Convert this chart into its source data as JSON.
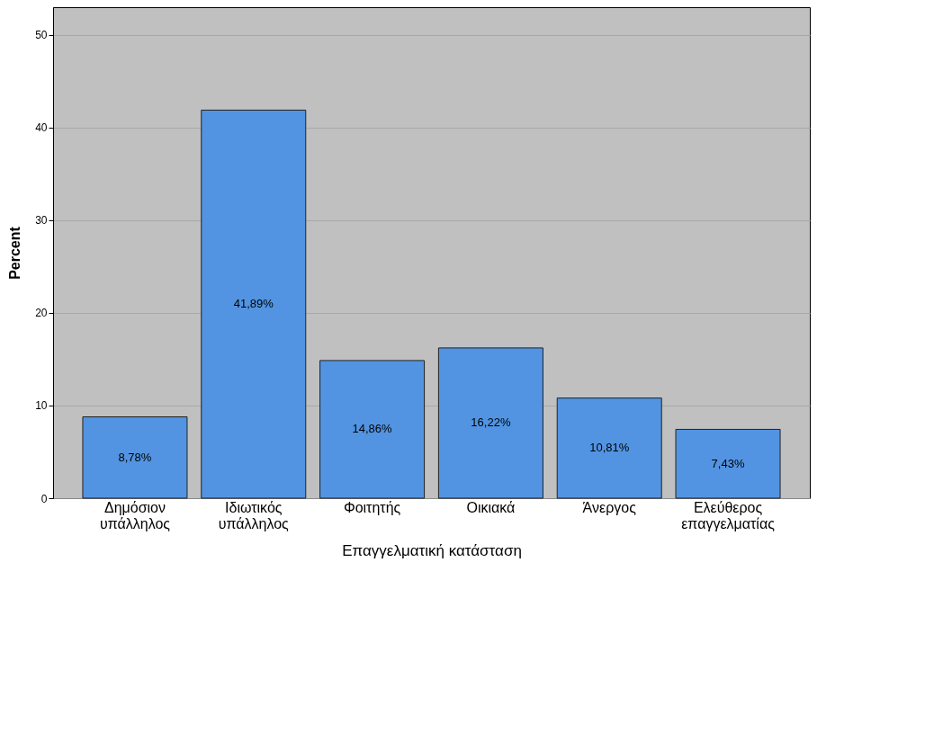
{
  "chart_data": {
    "type": "bar",
    "xlabel": "Επαγγελματική κατάσταση",
    "ylabel": "Percent",
    "categories": [
      "Δημόσιον υπάλληλος",
      "Ιδιωτικός υπάλληλος",
      "Φοιτητής",
      "Οικιακά",
      "Άνεργος",
      "Ελεύθερος επαγγελματίας"
    ],
    "values": [
      8.78,
      41.89,
      14.86,
      16.22,
      10.81,
      7.43
    ],
    "value_labels": [
      "8,78%",
      "41,89%",
      "14,86%",
      "16,22%",
      "10,81%",
      "7,43%"
    ],
    "color": "#5294e2",
    "ylim": [
      0,
      53
    ],
    "yticks": [
      0,
      10,
      20,
      30,
      40,
      50
    ],
    "grid": "y"
  }
}
